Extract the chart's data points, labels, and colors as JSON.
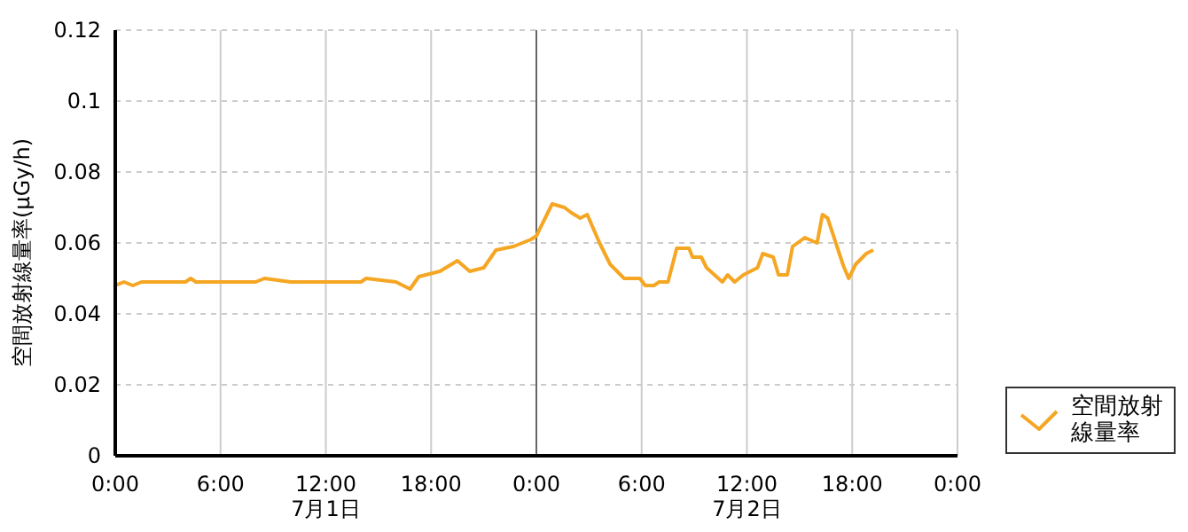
{
  "chart_data": {
    "type": "line",
    "ylabel": "空間放射線量率(μGy/h)",
    "x": [
      "--07-01T00:00",
      "--07-01T00:30",
      "--07-01T01:00",
      "--07-01T01:30",
      "--07-01T02:00",
      "--07-01T04:00",
      "--07-01T04:18",
      "--07-01T04:36",
      "--07-01T06:00",
      "--07-01T08:00",
      "--07-01T08:30",
      "--07-01T10:00",
      "--07-01T12:00",
      "--07-01T13:00",
      "--07-01T14:00",
      "--07-01T14:18",
      "--07-01T16:00",
      "--07-01T16:48",
      "--07-01T17:18",
      "--07-01T18:30",
      "--07-01T19:30",
      "--07-01T20:12",
      "--07-01T21:00",
      "--07-01T21:42",
      "--07-01T22:42",
      "--07-01T23:42",
      "--07-02T00:00",
      "--07-02T00:54",
      "--07-02T01:36",
      "--07-02T02:00",
      "--07-02T02:30",
      "--07-02T02:54",
      "--07-02T03:36",
      "--07-02T04:12",
      "--07-02T05:00",
      "--07-02T05:54",
      "--07-02T06:12",
      "--07-02T06:42",
      "--07-02T07:00",
      "--07-02T07:30",
      "--07-02T08:00",
      "--07-02T08:42",
      "--07-02T08:54",
      "--07-02T09:24",
      "--07-02T09:42",
      "--07-02T10:36",
      "--07-02T10:54",
      "--07-02T11:18",
      "--07-02T11:48",
      "--07-02T12:36",
      "--07-02T12:54",
      "--07-02T13:30",
      "--07-02T13:48",
      "--07-02T14:18",
      "--07-02T14:36",
      "--07-02T15:18",
      "--07-02T16:00",
      "--07-02T16:18",
      "--07-02T16:36",
      "--07-02T17:30",
      "--07-02T17:48",
      "--07-02T18:12",
      "--07-02T18:48",
      "--07-02T19:12"
    ],
    "series": [
      {
        "name": "空間放射線量率",
        "color": "#f5a623",
        "values": [
          0.048,
          0.049,
          0.048,
          0.049,
          0.049,
          0.049,
          0.05,
          0.049,
          0.049,
          0.049,
          0.05,
          0.049,
          0.049,
          0.049,
          0.049,
          0.05,
          0.049,
          0.047,
          0.0505,
          0.052,
          0.055,
          0.052,
          0.053,
          0.058,
          0.059,
          0.061,
          0.062,
          0.071,
          0.07,
          0.0685,
          0.067,
          0.068,
          0.06,
          0.054,
          0.05,
          0.05,
          0.048,
          0.048,
          0.049,
          0.049,
          0.0585,
          0.0585,
          0.056,
          0.056,
          0.053,
          0.049,
          0.051,
          0.049,
          0.051,
          0.053,
          0.057,
          0.056,
          0.051,
          0.051,
          0.059,
          0.0615,
          0.06,
          0.068,
          0.067,
          0.0535,
          0.05,
          0.054,
          0.057,
          0.058
        ]
      }
    ],
    "xlim": [
      "--07-01T00:00",
      "--07-03T00:00"
    ],
    "xticks": [
      {
        "value": "--07-01T00:00",
        "label": "0:00"
      },
      {
        "value": "--07-01T06:00",
        "label": "6:00"
      },
      {
        "value": "--07-01T12:00",
        "label": "12:00\n7月1日"
      },
      {
        "value": "--07-01T18:00",
        "label": "18:00"
      },
      {
        "value": "--07-02T00:00",
        "label": "0:00"
      },
      {
        "value": "--07-02T06:00",
        "label": "6:00"
      },
      {
        "value": "--07-02T12:00",
        "label": "12:00\n7月2日"
      },
      {
        "value": "--07-02T18:00",
        "label": "18:00"
      },
      {
        "value": "--07-03T00:00",
        "label": "0:00"
      }
    ],
    "ylim": [
      0,
      0.12
    ],
    "yticks": [
      0,
      0.02,
      0.04,
      0.06,
      0.08,
      0.1,
      0.12
    ],
    "ref_lines": [
      {
        "axis": "x",
        "value": "--07-02T00:00",
        "color": "#666666"
      }
    ],
    "grid": true,
    "legend": "right",
    "marker": "none",
    "line_style": "solid"
  }
}
